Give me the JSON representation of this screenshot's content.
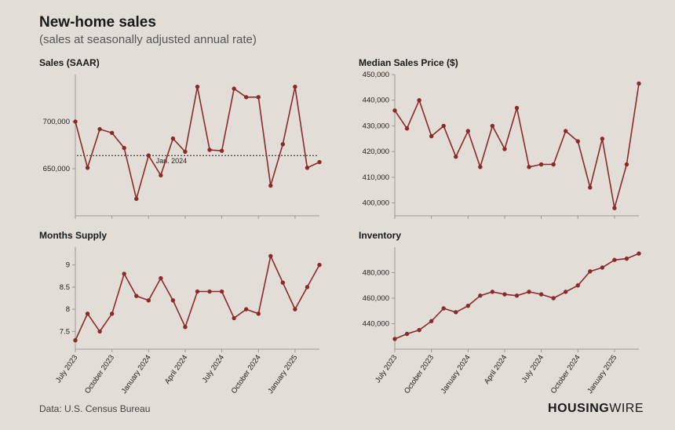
{
  "title": "New-home sales",
  "subtitle": "(sales at seasonally adjusted annual rate)",
  "source_text": "Data: U.S. Census Bureau",
  "brand_bold": "HOUSING",
  "brand_thin": "WIRE",
  "colors": {
    "background": "#e2ddd6",
    "line": "#8b2a2a",
    "marker_fill": "#8b2a2a",
    "axis": "#999999",
    "text": "#1a1a1a",
    "ref": "#222222"
  },
  "x_labels": [
    "July 2023",
    "October 2023",
    "January 2024",
    "April 2024",
    "July 2024",
    "October 2024",
    "January 2025"
  ],
  "panels": [
    {
      "key": "sales",
      "title": "Sales (SAAR)",
      "type": "line",
      "ylim": [
        600000,
        750000
      ],
      "yticks": [
        650000,
        700000
      ],
      "ytick_labels": [
        "650,000",
        "700,000"
      ],
      "values": [
        700000,
        651000,
        692000,
        688000,
        672000,
        618000,
        664000,
        643000,
        682000,
        668000,
        737000,
        670000,
        669000,
        735000,
        726000,
        726000,
        632000,
        676000,
        737000,
        651000,
        657000
      ],
      "reference": {
        "value": 664000,
        "label": "Jan. 2024"
      }
    },
    {
      "key": "median_price",
      "title": "Median Sales Price ($)",
      "type": "line",
      "ylim": [
        395000,
        450000
      ],
      "yticks": [
        400000,
        410000,
        420000,
        430000,
        440000,
        450000
      ],
      "ytick_labels": [
        "400,000",
        "410,000",
        "420,000",
        "430,000",
        "440,000",
        "450,000"
      ],
      "values": [
        436000,
        429000,
        440000,
        426000,
        430000,
        418000,
        428000,
        414000,
        430000,
        421000,
        437000,
        414000,
        415000,
        415000,
        428000,
        424000,
        406000,
        425000,
        398000,
        415000,
        446500
      ]
    },
    {
      "key": "months_supply",
      "title": "Months Supply",
      "type": "line",
      "ylim": [
        7.1,
        9.4
      ],
      "yticks": [
        7.5,
        8,
        8.5,
        9
      ],
      "ytick_labels": [
        "7.5",
        "8",
        "8.5",
        "9"
      ],
      "values": [
        7.3,
        7.9,
        7.5,
        7.9,
        8.8,
        8.3,
        8.2,
        8.7,
        8.2,
        7.6,
        8.4,
        8.4,
        8.4,
        7.8,
        8.0,
        7.9,
        9.2,
        8.6,
        8.0,
        8.5,
        9.0
      ]
    },
    {
      "key": "inventory",
      "title": "Inventory",
      "type": "line",
      "ylim": [
        420000,
        500000
      ],
      "yticks": [
        440000,
        460000,
        480000
      ],
      "ytick_labels": [
        "440,000",
        "460,000",
        "480,000"
      ],
      "values": [
        428000,
        432000,
        435000,
        442000,
        452000,
        449000,
        454000,
        462000,
        465000,
        463000,
        462000,
        465000,
        463000,
        460000,
        465000,
        470000,
        481000,
        484000,
        490000,
        491000,
        495000
      ]
    }
  ],
  "style": {
    "marker_radius": 2.2,
    "line_width": 1.6,
    "title_fontsize": 19,
    "subtitle_fontsize": 15,
    "panel_title_fontsize": 12,
    "tick_fontsize": 9.5
  }
}
